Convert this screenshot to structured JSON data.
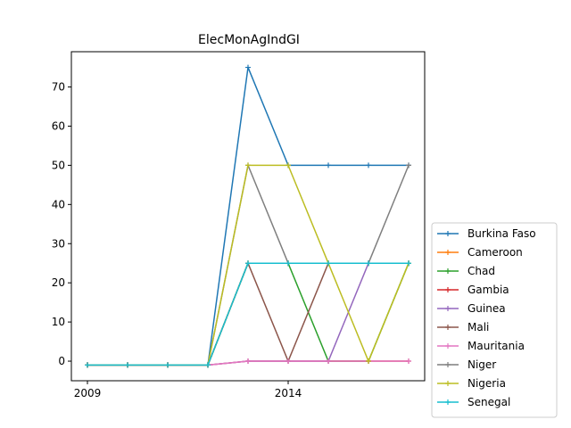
{
  "chart_data": {
    "type": "line",
    "title": "ElecMonAgIndGI",
    "xlabel": "",
    "ylabel": "",
    "x": [
      2009,
      2010,
      2011,
      2012,
      2013,
      2014,
      2015,
      2016,
      2017
    ],
    "xticks": [
      2009,
      2014
    ],
    "xlim": [
      2008.6,
      2017.4
    ],
    "yticks": [
      0,
      10,
      20,
      30,
      40,
      50,
      60,
      70
    ],
    "ylim": [
      -5,
      79
    ],
    "grid": false,
    "legend_position": "outside-lower-right",
    "series": [
      {
        "name": "Burkina Faso",
        "color": "#1f77b4",
        "values": [
          -1,
          -1,
          -1,
          -1,
          75,
          50,
          50,
          50,
          50
        ]
      },
      {
        "name": "Cameroon",
        "color": "#ff7f0e",
        "values": [
          -1,
          -1,
          -1,
          -1,
          25,
          25,
          25,
          25,
          25
        ]
      },
      {
        "name": "Chad",
        "color": "#2ca02c",
        "values": [
          -1,
          -1,
          -1,
          -1,
          25,
          25,
          0,
          0,
          25
        ]
      },
      {
        "name": "Gambia",
        "color": "#d62728",
        "values": [
          -1,
          -1,
          -1,
          -1,
          0,
          0,
          0,
          0,
          0
        ]
      },
      {
        "name": "Guinea",
        "color": "#9467bd",
        "values": [
          -1,
          -1,
          -1,
          -1,
          0,
          0,
          0,
          25,
          25
        ]
      },
      {
        "name": "Mali",
        "color": "#8c564b",
        "values": [
          -1,
          -1,
          -1,
          -1,
          25,
          0,
          25,
          25,
          25
        ]
      },
      {
        "name": "Mauritania",
        "color": "#e377c2",
        "values": [
          -1,
          -1,
          -1,
          -1,
          0,
          0,
          0,
          0,
          0
        ]
      },
      {
        "name": "Niger",
        "color": "#7f7f7f",
        "values": [
          -1,
          -1,
          -1,
          -1,
          50,
          25,
          25,
          25,
          50
        ]
      },
      {
        "name": "Nigeria",
        "color": "#bcbd22",
        "values": [
          -1,
          -1,
          -1,
          -1,
          50,
          50,
          25,
          0,
          25
        ]
      },
      {
        "name": "Senegal",
        "color": "#17becf",
        "values": [
          -1,
          -1,
          -1,
          -1,
          25,
          25,
          25,
          25,
          25
        ]
      }
    ]
  }
}
